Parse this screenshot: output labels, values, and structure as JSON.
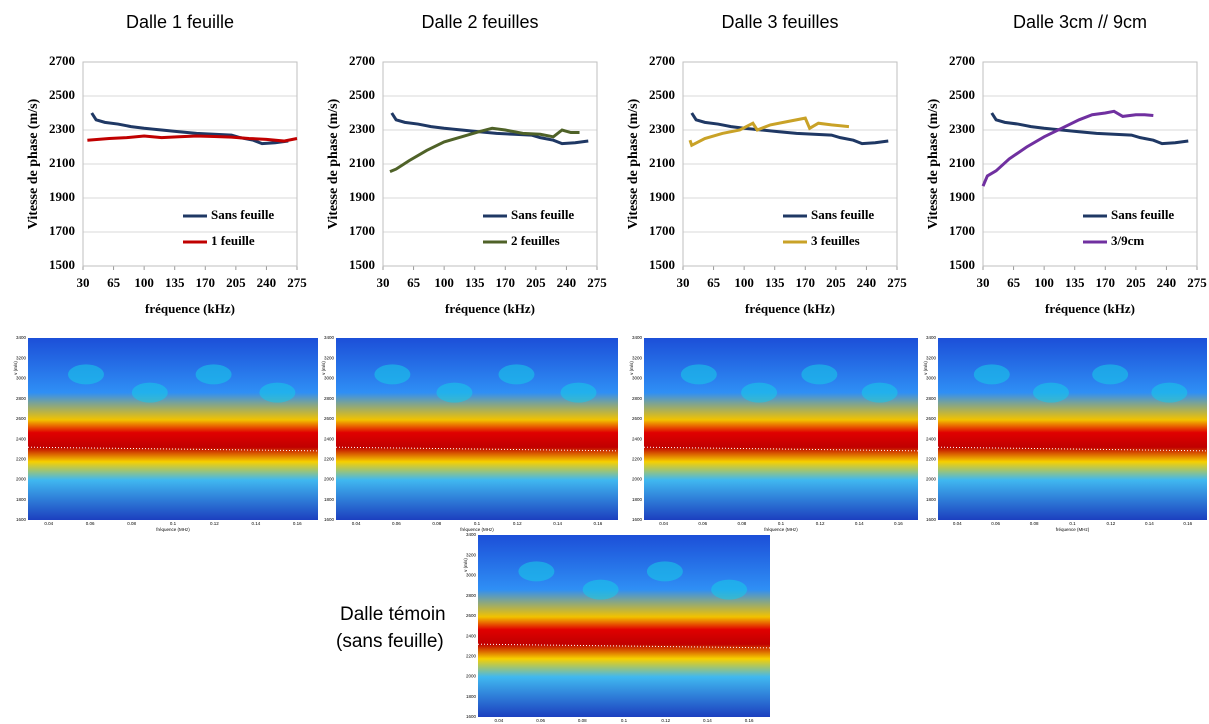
{
  "chart_data": [
    {
      "type": "line",
      "title": "Dalle 1 feuille",
      "ylabel": "Vitesse de phase (m/s)",
      "xlabel": "fréquence (kHz)",
      "xlim": [
        30,
        275
      ],
      "xticks": [
        30,
        65,
        100,
        135,
        170,
        205,
        240,
        275
      ],
      "ylim": [
        1500,
        2700
      ],
      "yticks": [
        1500,
        1700,
        1900,
        2100,
        2300,
        2500,
        2700
      ],
      "grid": true,
      "series": [
        {
          "name": "Sans feuille",
          "color": "#1f3864",
          "x": [
            40,
            45,
            55,
            70,
            85,
            100,
            120,
            140,
            160,
            180,
            200,
            210,
            225,
            235,
            250,
            265
          ],
          "values": [
            2400,
            2360,
            2345,
            2335,
            2320,
            2310,
            2300,
            2290,
            2280,
            2275,
            2270,
            2255,
            2240,
            2220,
            2225,
            2235
          ]
        },
        {
          "name": "1 feuille",
          "color": "#c00000",
          "x": [
            35,
            60,
            80,
            100,
            120,
            140,
            160,
            180,
            200,
            220,
            240,
            260,
            275
          ],
          "values": [
            2240,
            2250,
            2255,
            2265,
            2255,
            2260,
            2265,
            2262,
            2258,
            2250,
            2245,
            2235,
            2250
          ]
        }
      ]
    },
    {
      "type": "line",
      "title": "Dalle 2 feuilles",
      "ylabel": "Vitesse de phase (m/s)",
      "xlabel": "fréquence (kHz)",
      "xlim": [
        30,
        275
      ],
      "xticks": [
        30,
        65,
        100,
        135,
        170,
        205,
        240,
        275
      ],
      "ylim": [
        1500,
        2700
      ],
      "yticks": [
        1500,
        1700,
        1900,
        2100,
        2300,
        2500,
        2700
      ],
      "grid": true,
      "series": [
        {
          "name": "Sans feuille",
          "color": "#1f3864",
          "x": [
            40,
            45,
            55,
            70,
            85,
            100,
            120,
            140,
            160,
            180,
            200,
            210,
            225,
            235,
            250,
            265
          ],
          "values": [
            2400,
            2360,
            2345,
            2335,
            2320,
            2310,
            2300,
            2290,
            2280,
            2275,
            2270,
            2255,
            2240,
            2220,
            2225,
            2235
          ]
        },
        {
          "name": "2 feuilles",
          "color": "#4f6228",
          "x": [
            38,
            45,
            60,
            80,
            100,
            120,
            140,
            155,
            170,
            190,
            210,
            225,
            235,
            245,
            255
          ],
          "values": [
            2055,
            2070,
            2120,
            2180,
            2230,
            2260,
            2290,
            2310,
            2300,
            2280,
            2275,
            2260,
            2300,
            2285,
            2285
          ]
        }
      ]
    },
    {
      "type": "line",
      "title": "Dalle 3 feuilles",
      "ylabel": "Vitesse de phase (m/s)",
      "xlabel": "fréquence (kHz)",
      "xlim": [
        30,
        275
      ],
      "xticks": [
        30,
        65,
        100,
        135,
        170,
        205,
        240,
        275
      ],
      "ylim": [
        1500,
        2700
      ],
      "yticks": [
        1500,
        1700,
        1900,
        2100,
        2300,
        2500,
        2700
      ],
      "grid": true,
      "series": [
        {
          "name": "Sans feuille",
          "color": "#1f3864",
          "x": [
            40,
            45,
            55,
            70,
            85,
            100,
            120,
            140,
            160,
            180,
            200,
            210,
            225,
            235,
            250,
            265
          ],
          "values": [
            2400,
            2360,
            2345,
            2335,
            2320,
            2310,
            2300,
            2290,
            2280,
            2275,
            2270,
            2255,
            2240,
            2220,
            2225,
            2235
          ]
        },
        {
          "name": "3 feuilles",
          "color": "#c9a227",
          "x": [
            38,
            40,
            55,
            75,
            95,
            110,
            115,
            130,
            150,
            170,
            175,
            185,
            200,
            220
          ],
          "values": [
            2240,
            2210,
            2250,
            2280,
            2300,
            2340,
            2300,
            2330,
            2350,
            2370,
            2310,
            2340,
            2330,
            2320
          ]
        }
      ]
    },
    {
      "type": "line",
      "title": "Dalle 3cm // 9cm",
      "ylabel": "Vitesse de phase (m/s)",
      "xlabel": "fréquence (kHz)",
      "xlim": [
        30,
        275
      ],
      "xticks": [
        30,
        65,
        100,
        135,
        170,
        205,
        240,
        275
      ],
      "ylim": [
        1500,
        2700
      ],
      "yticks": [
        1500,
        1700,
        1900,
        2100,
        2300,
        2500,
        2700
      ],
      "grid": true,
      "series": [
        {
          "name": "Sans feuille",
          "color": "#1f3864",
          "x": [
            40,
            45,
            55,
            70,
            85,
            100,
            120,
            140,
            160,
            180,
            200,
            210,
            225,
            235,
            250,
            265
          ],
          "values": [
            2400,
            2360,
            2345,
            2335,
            2320,
            2310,
            2300,
            2290,
            2280,
            2275,
            2270,
            2255,
            2240,
            2220,
            2225,
            2235
          ]
        },
        {
          "name": "3/9cm",
          "color": "#7030a0",
          "x": [
            30,
            35,
            45,
            60,
            80,
            100,
            120,
            140,
            155,
            170,
            180,
            190,
            205,
            215,
            225
          ],
          "values": [
            1970,
            2030,
            2060,
            2130,
            2200,
            2260,
            2310,
            2360,
            2390,
            2400,
            2410,
            2380,
            2390,
            2390,
            2385
          ]
        }
      ]
    }
  ],
  "heatmaps": [
    {
      "ylabel": "v (m/s)",
      "xlabel": "fréquence (MHz)",
      "ylim": [
        1600,
        3400
      ],
      "yticks": [
        1600,
        1800,
        2000,
        2200,
        2400,
        2600,
        2800,
        3000,
        3200,
        3400
      ],
      "xlim": [
        0.03,
        0.17
      ],
      "xticks": [
        0.04,
        0.06,
        0.08,
        0.1,
        0.12,
        0.14,
        0.16
      ]
    },
    {
      "ylabel": "v (m/s)",
      "xlabel": "fréquence (MHz)",
      "ylim": [
        1600,
        3400
      ],
      "yticks": [
        1600,
        1800,
        2000,
        2200,
        2400,
        2600,
        2800,
        3000,
        3200,
        3400
      ],
      "xlim": [
        0.03,
        0.17
      ],
      "xticks": [
        0.04,
        0.06,
        0.08,
        0.1,
        0.12,
        0.14,
        0.16
      ]
    },
    {
      "ylabel": "v (m/s)",
      "xlabel": "fréquence (MHz)",
      "ylim": [
        1600,
        3400
      ],
      "yticks": [
        1600,
        1800,
        2000,
        2200,
        2400,
        2600,
        2800,
        3000,
        3200,
        3400
      ],
      "xlim": [
        0.03,
        0.17
      ],
      "xticks": [
        0.04,
        0.06,
        0.08,
        0.1,
        0.12,
        0.14,
        0.16
      ]
    },
    {
      "ylabel": "v (m/s)",
      "xlabel": "fréquence (MHz)",
      "ylim": [
        1600,
        3400
      ],
      "yticks": [
        1600,
        1800,
        2000,
        2200,
        2400,
        2600,
        2800,
        3000,
        3200,
        3400
      ],
      "xlim": [
        0.03,
        0.17
      ],
      "xticks": [
        0.04,
        0.06,
        0.08,
        0.1,
        0.12,
        0.14,
        0.16
      ]
    },
    {
      "ylabel": "v (m/s)",
      "xlabel": "fréquence (MHz)",
      "ylim": [
        1600,
        3400
      ],
      "yticks": [
        1600,
        1800,
        2000,
        2200,
        2400,
        2600,
        2800,
        3000,
        3200,
        3400
      ],
      "xlim": [
        0.03,
        0.17
      ],
      "xticks": [
        0.04,
        0.06,
        0.08,
        0.1,
        0.12,
        0.14,
        0.16
      ]
    }
  ],
  "caption": [
    "Dalle témoin",
    "(sans feuille)"
  ]
}
